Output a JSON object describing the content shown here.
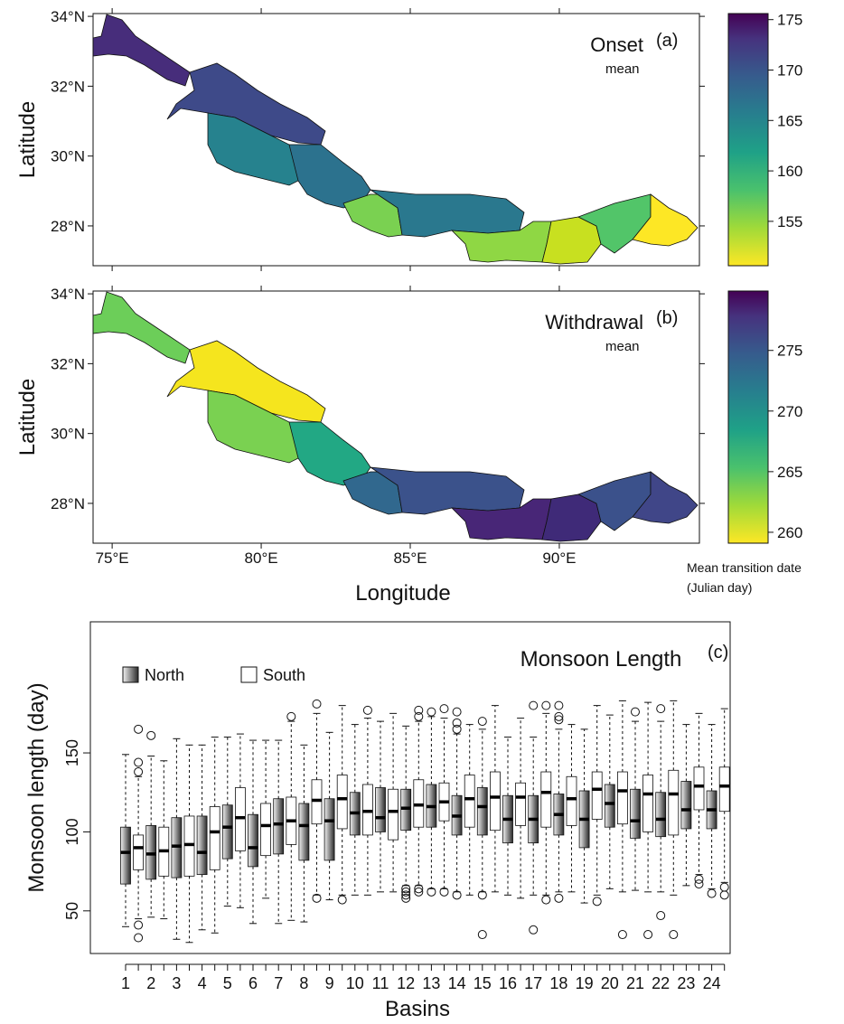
{
  "chart_data": [
    {
      "type": "choropleth",
      "title": "Onset",
      "subtitle": "mean",
      "panel": "(a)",
      "ylabel": "Latitude",
      "xlim": [
        74.36,
        94.7
      ],
      "ylim": [
        26.86,
        34.08
      ],
      "yticks": [
        {
          "value": 28,
          "label": "28°N"
        },
        {
          "value": 30,
          "label": "30°N"
        },
        {
          "value": 32,
          "label": "32°N"
        },
        {
          "value": 34,
          "label": "34°N"
        }
      ],
      "colorbar": {
        "lim": [
          150.6,
          175.6
        ],
        "ticks": [
          155,
          160,
          165,
          170,
          175
        ]
      }
    },
    {
      "type": "choropleth",
      "title": "Withdrawal",
      "subtitle": "mean",
      "panel": "(b)",
      "xlabel": "Longitude",
      "ylabel": "Latitude",
      "xlim": [
        74.36,
        94.7
      ],
      "ylim": [
        26.86,
        34.08
      ],
      "xticks": [
        {
          "value": 75,
          "label": "75°E"
        },
        {
          "value": 80,
          "label": "80°E"
        },
        {
          "value": 85,
          "label": "85°E"
        },
        {
          "value": 90,
          "label": "90°E"
        }
      ],
      "yticks": [
        {
          "value": 28,
          "label": "28°N"
        },
        {
          "value": 30,
          "label": "30°N"
        },
        {
          "value": 32,
          "label": "32°N"
        },
        {
          "value": 34,
          "label": "34°N"
        }
      ],
      "colorbar": {
        "lim": [
          259.1,
          279.9
        ],
        "ticks": [
          260,
          265,
          270,
          275
        ]
      },
      "colorbar_label": [
        "Mean transition date",
        "(Julian day)"
      ]
    },
    {
      "type": "boxplot",
      "title": "Monsoon Length",
      "panel": "(c)",
      "xlabel": "Basins",
      "ylabel": "Monsoon length (day)",
      "categories": [
        "1",
        "2",
        "3",
        "4",
        "5",
        "6",
        "7",
        "8",
        "9",
        "10",
        "11",
        "12",
        "13",
        "14",
        "15",
        "16",
        "17",
        "18",
        "19",
        "20",
        "21",
        "22",
        "23",
        "24"
      ],
      "ylim": [
        23,
        233
      ],
      "yticks": [
        50,
        100,
        150
      ],
      "series": [
        {
          "name": "North",
          "whisker_low": [
            40,
            46,
            32,
            38,
            53,
            42,
            42,
            43,
            57,
            60,
            62,
            66,
            64,
            62,
            62,
            60,
            60,
            62,
            55,
            64,
            63,
            62,
            66,
            64
          ],
          "q1": [
            67,
            70,
            71,
            73,
            83,
            78,
            86,
            82,
            82,
            98,
            100,
            101,
            103,
            98,
            98,
            93,
            93,
            98,
            90,
            103,
            96,
            97,
            102,
            102
          ],
          "median": [
            87,
            86,
            91,
            87,
            103,
            90,
            105,
            104,
            107,
            112,
            109,
            115,
            116,
            110,
            116,
            108,
            108,
            111,
            108,
            118,
            107,
            108,
            114,
            114
          ],
          "q3": [
            103,
            104,
            109,
            110,
            117,
            111,
            121,
            118,
            121,
            125,
            128,
            127,
            130,
            123,
            128,
            123,
            123,
            124,
            126,
            130,
            127,
            125,
            132,
            126
          ],
          "whisker_high": [
            149,
            148,
            159,
            155,
            160,
            158,
            158,
            155,
            163,
            168,
            170,
            167,
            173,
            162,
            165,
            160,
            160,
            165,
            165,
            174,
            170,
            170,
            168,
            168
          ],
          "outliers": [
            [],
            [
              161
            ],
            [],
            [],
            [],
            [],
            [],
            [],
            [],
            [],
            [],
            [
              64,
              62,
              60,
              58
            ],
            [
              176,
              62
            ],
            [
              176,
              169,
              165,
              60
            ],
            [
              170,
              60,
              35
            ],
            [],
            [
              180,
              38
            ],
            [
              180,
              173,
              171,
              58
            ],
            [],
            [],
            [
              176
            ],
            [
              178,
              47
            ],
            [],
            [
              61
            ]
          ]
        },
        {
          "name": "South",
          "whisker_low": [
            45,
            45,
            30,
            36,
            52,
            58,
            44,
            60,
            60,
            60,
            62,
            66,
            64,
            60,
            62,
            58,
            60,
            62,
            60,
            62,
            62,
            60,
            73,
            68
          ],
          "q1": [
            76,
            72,
            72,
            76,
            88,
            85,
            92,
            105,
            102,
            98,
            95,
            103,
            107,
            103,
            101,
            104,
            103,
            104,
            108,
            105,
            100,
            98,
            114,
            113
          ],
          "median": [
            90,
            88,
            92,
            100,
            109,
            104,
            107,
            120,
            121,
            113,
            113,
            117,
            119,
            121,
            122,
            122,
            125,
            121,
            127,
            126,
            124,
            124,
            129,
            129
          ],
          "q3": [
            98,
            103,
            110,
            116,
            128,
            118,
            122,
            133,
            136,
            130,
            127,
            133,
            131,
            136,
            138,
            131,
            138,
            135,
            138,
            138,
            136,
            139,
            141,
            141
          ],
          "whisker_high": [
            135,
            145,
            155,
            160,
            162,
            158,
            170,
            175,
            180,
            172,
            175,
            170,
            172,
            168,
            180,
            172,
            175,
            168,
            180,
            183,
            182,
            183,
            175,
            178
          ],
          "outliers": [
            [
              165,
              144,
              138,
              41,
              33
            ],
            [],
            [],
            [],
            [],
            [],
            [
              173
            ],
            [
              181,
              58
            ],
            [
              57
            ],
            [
              177
            ],
            [],
            [
              177,
              173,
              64,
              62
            ],
            [
              178,
              62
            ],
            [],
            [],
            [],
            [
              180,
              57
            ],
            [],
            [
              56
            ],
            [
              35
            ],
            [
              35
            ],
            [
              35
            ],
            [
              70,
              67
            ],
            [
              65,
              60
            ]
          ]
        }
      ]
    }
  ]
}
